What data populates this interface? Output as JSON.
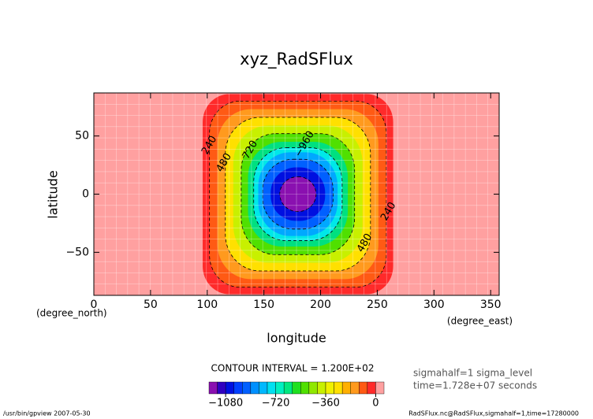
{
  "chart_data": {
    "type": "contour",
    "title": "xyz_RadSFlux",
    "xlabel": "longitude",
    "ylabel": "latitude",
    "xunit": "(degree_east)",
    "yunit": "(degree_north)",
    "xlim": [
      0,
      357.5
    ],
    "ylim": [
      -87,
      87
    ],
    "xticks": [
      0,
      50,
      100,
      150,
      200,
      250,
      300,
      350
    ],
    "yticks": [
      {
        "value": -50,
        "label": "−50"
      },
      0,
      50
    ],
    "grid": true,
    "background_color": "#ffa0a0",
    "center": [
      180,
      0
    ],
    "regions": [
      {
        "level": -60,
        "color": "#ff2a2a",
        "hx": 84,
        "hy": 86
      },
      {
        "level": -120,
        "color": "#ff5a14",
        "hx": 78,
        "hy": 80
      },
      {
        "level": -240,
        "color": "#ff9a1e",
        "hx": 71,
        "hy": 73
      },
      {
        "level": -360,
        "color": "#ffe000",
        "hx": 64,
        "hy": 66
      },
      {
        "level": -480,
        "color": "#c8f000",
        "hx": 57,
        "hy": 59
      },
      {
        "level": -600,
        "color": "#50e000",
        "hx": 50,
        "hy": 52
      },
      {
        "level": -720,
        "color": "#00e080",
        "hx": 44,
        "hy": 45
      },
      {
        "level": -840,
        "color": "#00e8e8",
        "hx": 39,
        "hy": 40
      },
      {
        "level": -960,
        "color": "#00a8ff",
        "hx": 35,
        "hy": 36
      },
      {
        "level": -1020,
        "color": "#0060ff",
        "hx": 31,
        "hy": 30
      },
      {
        "level": -1080,
        "color": "#0010e0",
        "hx": 24,
        "hy": 23
      },
      {
        "level": -1140,
        "color": "#8a10b0",
        "hx": 16,
        "hy": 15
      }
    ],
    "contour_labels": [
      {
        "text": "240",
        "x": 102,
        "y": 42
      },
      {
        "text": "480",
        "x": 115,
        "y": 27
      },
      {
        "text": "720",
        "x": 138,
        "y": 38
      },
      {
        "text": "−960",
        "x": 186,
        "y": 43
      },
      {
        "text": "480",
        "x": 239,
        "y": -42
      },
      {
        "text": "240",
        "x": 260,
        "y": -15
      }
    ],
    "contour_interval_text": "CONTOUR INTERVAL = 1.200E+02",
    "info": [
      "sigmahalf=1 sigma_level",
      "time=1.728e+07 seconds"
    ],
    "footer_left": "/usr/bin/gpview  2007-05-30",
    "footer_right": "RadSFlux.nc@RadSFlux,sigmahalf=1,time=17280000",
    "colorbar": {
      "levels": [
        -1200,
        -1140,
        -1080,
        -1020,
        -960,
        -900,
        -840,
        -780,
        -720,
        -660,
        -600,
        -540,
        -480,
        -420,
        -360,
        -300,
        -240,
        -180,
        -120,
        -60,
        0,
        60
      ],
      "colors": [
        "#8a10b0",
        "#3000c0",
        "#0010e0",
        "#0040ff",
        "#0060ff",
        "#0090ff",
        "#00b8ff",
        "#00e0f0",
        "#00f0c0",
        "#00e880",
        "#20e020",
        "#50e000",
        "#90e800",
        "#c8f000",
        "#f0f000",
        "#ffe000",
        "#ffb000",
        "#ff9a1e",
        "#ff5a14",
        "#ff2a2a",
        "#ffa0a0"
      ],
      "ticks": [
        {
          "value": -1080,
          "label": "−1080"
        },
        {
          "value": -720,
          "label": "−720"
        },
        {
          "value": -360,
          "label": "−360"
        },
        0
      ]
    }
  }
}
